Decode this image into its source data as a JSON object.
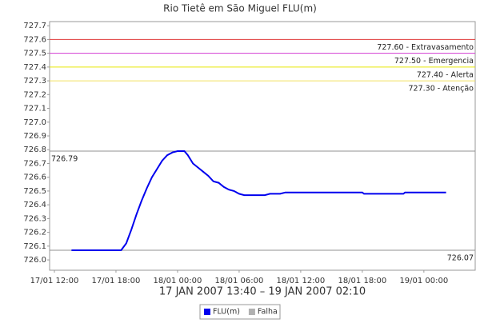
{
  "chart_data": {
    "type": "line",
    "title": "Rio Tietê em São Miguel FLU(m)",
    "subtitle": "17 JAN 2007 13:40 – 19 JAN 2007 02:10",
    "x": [
      "2007-01-17T13:40",
      "2007-01-17T18:30",
      "2007-01-17T19:00",
      "2007-01-17T19:30",
      "2007-01-17T20:00",
      "2007-01-17T20:30",
      "2007-01-17T21:00",
      "2007-01-17T21:30",
      "2007-01-17T22:00",
      "2007-01-17T22:30",
      "2007-01-17T23:00",
      "2007-01-17T23:30",
      "2007-01-18T00:00",
      "2007-01-18T00:40",
      "2007-01-18T01:00",
      "2007-01-18T01:30",
      "2007-01-18T02:00",
      "2007-01-18T02:30",
      "2007-01-18T03:00",
      "2007-01-18T03:30",
      "2007-01-18T04:00",
      "2007-01-18T04:30",
      "2007-01-18T05:00",
      "2007-01-18T05:30",
      "2007-01-18T06:00",
      "2007-01-18T06:30",
      "2007-01-18T08:30",
      "2007-01-18T09:00",
      "2007-01-18T10:00",
      "2007-01-18T10:30",
      "2007-01-18T18:00",
      "2007-01-18T18:10",
      "2007-01-18T22:00",
      "2007-01-18T22:10",
      "2007-01-19T02:10"
    ],
    "series": [
      {
        "name": "FLU(m)",
        "color": "#0000ee",
        "values": [
          726.07,
          726.07,
          726.12,
          726.22,
          726.33,
          726.43,
          726.52,
          726.6,
          726.66,
          726.72,
          726.76,
          726.78,
          726.79,
          726.79,
          726.76,
          726.7,
          726.67,
          726.64,
          726.61,
          726.57,
          726.56,
          726.53,
          726.51,
          726.5,
          726.48,
          726.47,
          726.47,
          726.48,
          726.48,
          726.49,
          726.49,
          726.48,
          726.48,
          726.49,
          726.49
        ]
      },
      {
        "name": "Falha",
        "color": "#b0b0b0",
        "values": [
          null,
          null,
          null,
          null,
          null,
          null,
          null,
          null,
          null,
          null,
          null,
          null,
          null,
          null,
          null,
          null,
          null,
          null,
          null,
          null,
          null,
          null,
          null,
          null,
          null,
          null,
          null,
          null,
          null,
          null,
          null,
          null,
          null,
          null,
          null
        ]
      }
    ],
    "ylim": [
      725.925,
      727.73
    ],
    "yticks": [
      {
        "value": 726,
        "label": "726.0"
      },
      726.1,
      726.2,
      726.3,
      726.4,
      726.5,
      726.6,
      726.7,
      726.8,
      726.9,
      {
        "value": 727,
        "label": "727.0"
      },
      727.1,
      727.2,
      727.3,
      727.4,
      727.5,
      727.6,
      727.7
    ],
    "xlim": [
      "2007-01-17T11:32",
      "2007-01-19T05:00"
    ],
    "xticks": [
      {
        "value": "2007-01-17T12:00",
        "label": "17/01 12:00"
      },
      {
        "value": "2007-01-17T18:00",
        "label": "17/01 18:00"
      },
      {
        "value": "2007-01-18T00:00",
        "label": "18/01 00:00"
      },
      {
        "value": "2007-01-18T06:00",
        "label": "18/01 06:00"
      },
      {
        "value": "2007-01-18T12:00",
        "label": "18/01 12:00"
      },
      {
        "value": "2007-01-18T18:00",
        "label": "18/01 18:00"
      },
      {
        "value": "2007-01-19T00:00",
        "label": "19/01 00:00"
      }
    ],
    "reference_lines": [
      {
        "value": 727.6,
        "label": "727.60 - Extravasamento",
        "color": "#e03a3a",
        "label_side": "right"
      },
      {
        "value": 727.5,
        "label": "727.50 - Emergencia",
        "color": "#d23cd2",
        "label_side": "right"
      },
      {
        "value": 727.4,
        "label": "727.40 - Alerta",
        "color": "#e8e800",
        "label_side": "right"
      },
      {
        "value": 727.3,
        "label": "727.30 - Atenção",
        "color": "#f0e060",
        "label_side": "right"
      },
      {
        "value": 726.79,
        "label": "726.79",
        "color": "#909090",
        "label_side": "left"
      },
      {
        "value": 726.07,
        "label": "726.07",
        "color": "#909090",
        "label_side": "right"
      }
    ]
  }
}
